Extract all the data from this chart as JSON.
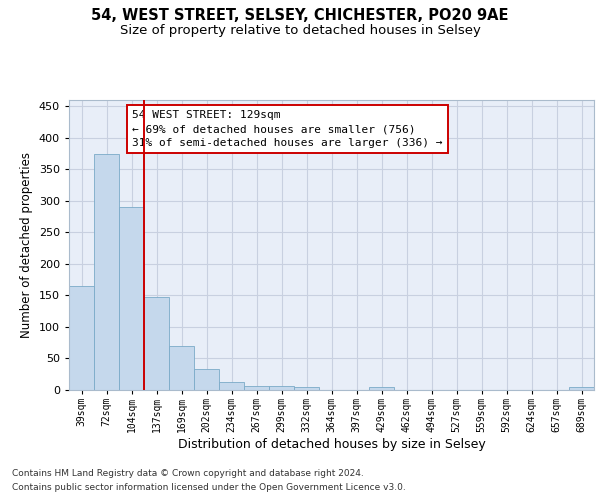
{
  "title1": "54, WEST STREET, SELSEY, CHICHESTER, PO20 9AE",
  "title2": "Size of property relative to detached houses in Selsey",
  "xlabel": "Distribution of detached houses by size in Selsey",
  "ylabel": "Number of detached properties",
  "footnote1": "Contains HM Land Registry data © Crown copyright and database right 2024.",
  "footnote2": "Contains public sector information licensed under the Open Government Licence v3.0.",
  "categories": [
    "39sqm",
    "72sqm",
    "104sqm",
    "137sqm",
    "169sqm",
    "202sqm",
    "234sqm",
    "267sqm",
    "299sqm",
    "332sqm",
    "364sqm",
    "397sqm",
    "429sqm",
    "462sqm",
    "494sqm",
    "527sqm",
    "559sqm",
    "592sqm",
    "624sqm",
    "657sqm",
    "689sqm"
  ],
  "values": [
    165,
    375,
    290,
    148,
    70,
    33,
    13,
    7,
    6,
    5,
    0,
    0,
    4,
    0,
    0,
    0,
    0,
    0,
    0,
    0,
    4
  ],
  "bar_color": "#c5d8ec",
  "bar_edge_color": "#7aaac8",
  "grid_color": "#c8d0e0",
  "background_color": "#e8eef8",
  "vline_x": 2.5,
  "vline_color": "#cc0000",
  "ann_line1": "54 WEST STREET: 129sqm",
  "ann_line2": "← 69% of detached houses are smaller (756)",
  "ann_line3": "31% of semi-detached houses are larger (336) →",
  "ann_box_color": "white",
  "ann_box_edge": "#cc0000",
  "ylim": [
    0,
    460
  ],
  "yticks": [
    0,
    50,
    100,
    150,
    200,
    250,
    300,
    350,
    400,
    450
  ],
  "title1_fontsize": 10.5,
  "title2_fontsize": 9.5
}
